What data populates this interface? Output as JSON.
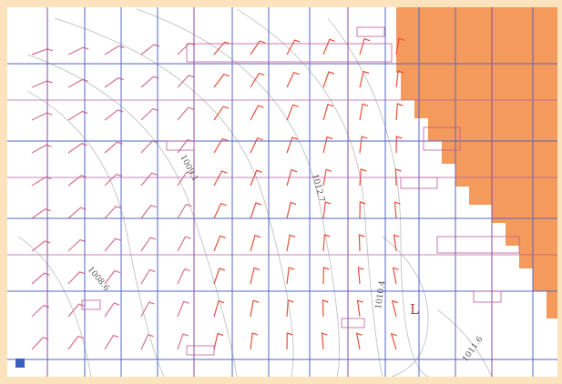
{
  "map": {
    "contour_labels": [
      "1009.1",
      "1012.7",
      "1008.6",
      "1010.4",
      "1011.6"
    ],
    "low_label": "L"
  }
}
